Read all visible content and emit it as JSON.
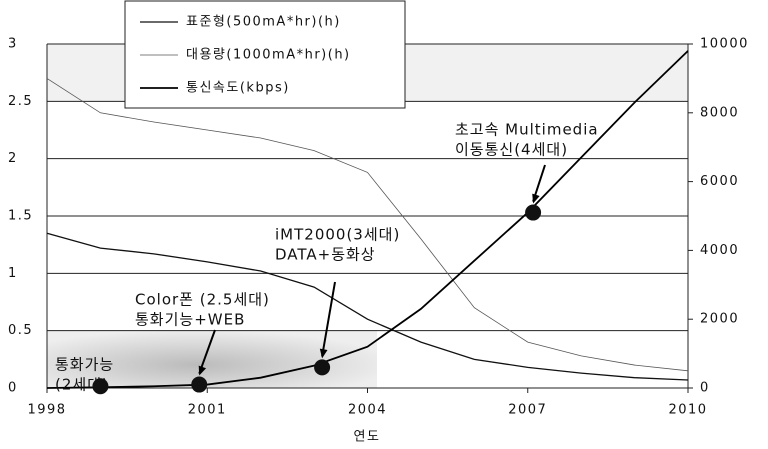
{
  "chart_data": {
    "type": "line",
    "x_label": "연도",
    "x": [
      1998,
      1999,
      2000,
      2001,
      2002,
      2003,
      2004,
      2005,
      2006,
      2007,
      2008,
      2009,
      2010
    ],
    "series": [
      {
        "name": "표준형(500mA*hr)(h)",
        "color": "#111111",
        "values": [
          1.35,
          1.22,
          1.17,
          1.1,
          1.02,
          0.88,
          0.6,
          0.4,
          0.25,
          0.18,
          0.13,
          0.09,
          0.07
        ]
      },
      {
        "name": "대용량(1000mA*hr)(h)",
        "color": "#555555",
        "values": [
          2.7,
          2.4,
          2.32,
          2.25,
          2.18,
          2.07,
          1.88,
          1.3,
          0.7,
          0.4,
          0.28,
          0.2,
          0.15
        ]
      },
      {
        "name": "통신속도(kbps)",
        "color": "#000000",
        "axis": "y2",
        "values": [
          0,
          20,
          50,
          100,
          300,
          650,
          1200,
          2300,
          3700,
          5100,
          6700,
          8300,
          9800
        ]
      }
    ],
    "xlim": [
      1998,
      2010
    ],
    "xticks": [
      1998,
      2001,
      2004,
      2007,
      2010
    ],
    "ylim": [
      0,
      3
    ],
    "yticks": [
      0,
      0.5,
      1,
      1.5,
      2,
      2.5,
      3
    ],
    "y2lim": [
      0,
      10000
    ],
    "y2ticks": [
      0,
      2000,
      4000,
      6000,
      8000,
      10000
    ],
    "grid": true,
    "legend": "top-left",
    "annotations": [
      {
        "lines": [
          "통화가능",
          "(2세대)"
        ],
        "x": 1999.0,
        "value": 50
      },
      {
        "lines": [
          "Color폰 (2.5세대)",
          "통화기능+WEB"
        ],
        "x": 2000.85,
        "value": 100
      },
      {
        "lines": [
          "iMT2000(3세대)",
          "DATA+동화상"
        ],
        "x": 2003.15,
        "value": 600
      },
      {
        "lines": [
          "초고속 Multimedia",
          "이동통신(4세대)"
        ],
        "x": 2007.1,
        "value": 5100
      }
    ]
  }
}
